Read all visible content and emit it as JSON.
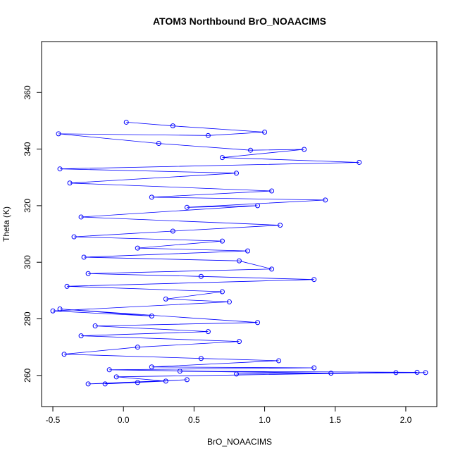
{
  "chart_data": {
    "type": "scatter",
    "title": "ATOM3 Northbound BrO_NOAACIMS",
    "xlabel": "BrO_NOAACIMS",
    "ylabel": "Theta (K)",
    "xlim": [
      -0.58,
      2.22
    ],
    "ylim": [
      249,
      378
    ],
    "xticks": [
      -0.5,
      0.0,
      0.5,
      1.0,
      1.5,
      2.0
    ],
    "xtick_labels": [
      "-0.5",
      "0.0",
      "0.5",
      "1.0",
      "1.5",
      "2.0"
    ],
    "yticks": [
      260,
      280,
      300,
      320,
      340,
      360
    ],
    "ytick_labels": [
      "260",
      "280",
      "300",
      "320",
      "340",
      "360"
    ],
    "series": [
      {
        "color": "#0000ff",
        "marker": "open-circle",
        "line": true,
        "points": [
          [
            0.02,
            349.5
          ],
          [
            0.35,
            348.2
          ],
          [
            1.0,
            346.0
          ],
          [
            0.6,
            344.8
          ],
          [
            -0.46,
            345.4
          ],
          [
            0.25,
            342.0
          ],
          [
            0.9,
            339.6
          ],
          [
            1.28,
            339.9
          ],
          [
            0.7,
            337.0
          ],
          [
            1.67,
            335.3
          ],
          [
            -0.45,
            333.0
          ],
          [
            0.8,
            331.5
          ],
          [
            -0.38,
            328.0
          ],
          [
            1.05,
            325.2
          ],
          [
            0.2,
            323.0
          ],
          [
            1.43,
            322.0
          ],
          [
            0.45,
            319.4
          ],
          [
            0.95,
            320.0
          ],
          [
            -0.3,
            316.0
          ],
          [
            1.11,
            313.1
          ],
          [
            0.35,
            311.0
          ],
          [
            -0.35,
            309.0
          ],
          [
            0.7,
            307.5
          ],
          [
            0.1,
            305.0
          ],
          [
            0.88,
            304.0
          ],
          [
            -0.28,
            301.8
          ],
          [
            0.82,
            300.5
          ],
          [
            1.05,
            297.6
          ],
          [
            -0.25,
            296.0
          ],
          [
            0.55,
            295.0
          ],
          [
            1.35,
            293.9
          ],
          [
            -0.4,
            291.5
          ],
          [
            0.7,
            289.6
          ],
          [
            0.3,
            287.0
          ],
          [
            0.75,
            286.0
          ],
          [
            -0.5,
            282.8
          ],
          [
            0.2,
            281.0
          ],
          [
            -0.45,
            283.5
          ],
          [
            0.95,
            278.7
          ],
          [
            -0.2,
            277.5
          ],
          [
            0.6,
            275.5
          ],
          [
            -0.3,
            274.0
          ],
          [
            0.82,
            272.0
          ],
          [
            0.1,
            270.0
          ],
          [
            -0.42,
            267.5
          ],
          [
            0.55,
            266.0
          ],
          [
            1.1,
            265.2
          ],
          [
            0.2,
            263.0
          ],
          [
            1.35,
            262.7
          ],
          [
            -0.1,
            262.0
          ],
          [
            1.47,
            260.8
          ],
          [
            0.4,
            261.5
          ],
          [
            2.08,
            261.1
          ],
          [
            0.8,
            260.5
          ],
          [
            2.14,
            261.0
          ],
          [
            1.93,
            261.0
          ],
          [
            -0.05,
            259.5
          ],
          [
            0.3,
            258.0
          ],
          [
            -0.13,
            257.0
          ],
          [
            0.45,
            258.5
          ],
          [
            -0.25,
            257.0
          ],
          [
            0.1,
            257.5
          ]
        ]
      }
    ]
  }
}
